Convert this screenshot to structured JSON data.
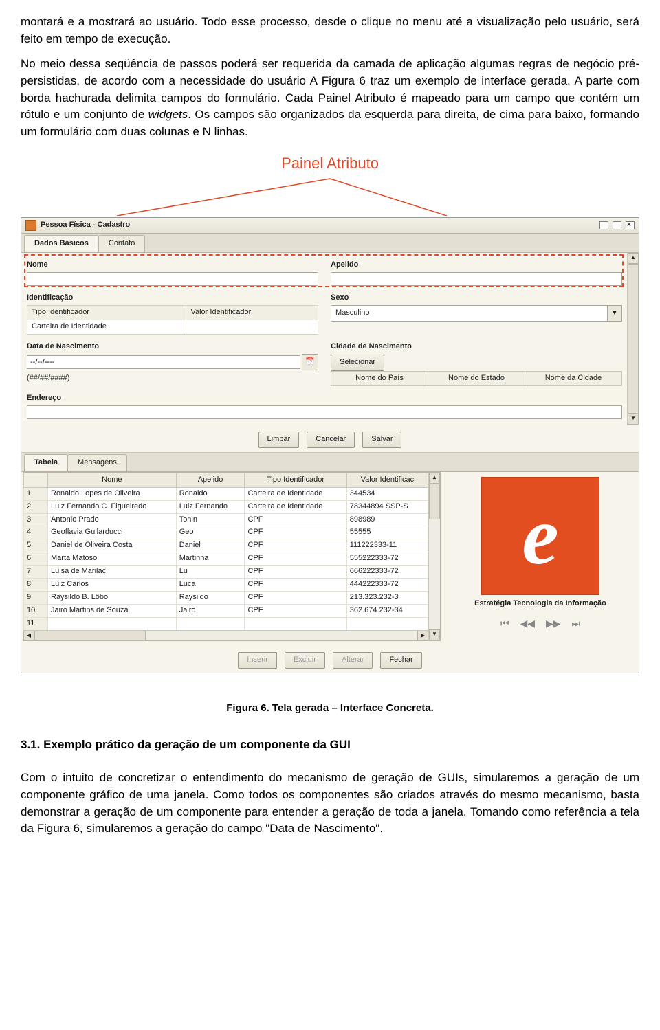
{
  "para1": "montará e a mostrará ao usuário. Todo esse processo, desde o clique no menu até a visualização pelo usuário, será feito em tempo de execução.",
  "para2_a": "No meio dessa seqüência de passos poderá ser requerida da camada de aplicação algumas regras de negócio pré-persistidas, de acordo com a necessidade do usuário A Figura 6 traz um exemplo de interface gerada. A parte com borda hachurada delimita campos do formulário. Cada Painel Atributo é mapeado para um campo que contém um rótulo e um conjunto de ",
  "para2_i": "widgets",
  "para2_b": ". Os campos são organizados da esquerda para direita, de cima para baixo, formando um formulário com duas colunas e N linhas.",
  "annotation": "Painel Atributo",
  "window_title": "Pessoa Física - Cadastro",
  "tabs_top": {
    "a": "Dados Básicos",
    "b": "Contato"
  },
  "labels": {
    "nome": "Nome",
    "apelido": "Apelido",
    "identificacao": "Identificação",
    "sexo": "Sexo",
    "tipo_ident": "Tipo Identificador",
    "valor_ident": "Valor Identificador",
    "carteira": "Carteira de Identidade",
    "data_nasc": "Data de Nascimento",
    "cidade_nasc": "Cidade de Nascimento",
    "endereco": "Endereço",
    "selecionar": "Selecionar",
    "nome_pais": "Nome do País",
    "nome_estado": "Nome do Estado",
    "nome_cidade": "Nome da Cidade"
  },
  "sexo_value": "Masculino",
  "date_placeholder": "--/--/----",
  "date_mask": "(##/##/####)",
  "buttons_upper": {
    "limpar": "Limpar",
    "cancelar": "Cancelar",
    "salvar": "Salvar"
  },
  "tabs_lower": {
    "a": "Tabela",
    "b": "Mensagens"
  },
  "grid_headers": [
    "",
    "Nome",
    "Apelido",
    "Tipo Identificador",
    "Valor Identificac"
  ],
  "grid_rows": [
    [
      "1",
      "Ronaldo Lopes de Oliveira",
      "Ronaldo",
      "Carteira de Identidade",
      "344534"
    ],
    [
      "2",
      "Luiz Fernando C. Figueiredo",
      "Luiz Fernando",
      "Carteira de Identidade",
      "78344894 SSP-S"
    ],
    [
      "3",
      "Antonio Prado",
      "Tonin",
      "CPF",
      "898989"
    ],
    [
      "4",
      "Geoflavia Guilarducci",
      "Geo",
      "CPF",
      "55555"
    ],
    [
      "5",
      "Daniel de Oliveira Costa",
      "Daniel",
      "CPF",
      "111222333-11"
    ],
    [
      "6",
      "Marta Matoso",
      "Martinha",
      "CPF",
      "555222333-72"
    ],
    [
      "7",
      "Luisa de Marilac",
      "Lu",
      "CPF",
      "666222333-72"
    ],
    [
      "8",
      "Luiz Carlos",
      "Luca",
      "CPF",
      "444222333-72"
    ],
    [
      "9",
      "Raysildo B. Lôbo",
      "Raysildo",
      "CPF",
      "213.323.232-3"
    ],
    [
      "10",
      "Jairo Martins de Souza",
      "Jairo",
      "CPF",
      "362.674.232-34"
    ],
    [
      "11",
      "",
      "",
      "",
      ""
    ]
  ],
  "logo_caption": "Estratégia Tecnologia da Informação",
  "buttons_lower": {
    "inserir": "Inserir",
    "excluir": "Excluir",
    "alterar": "Alterar",
    "fechar": "Fechar"
  },
  "pager": {
    "first": "⏮",
    "prev": "◀◀",
    "next": "▶▶",
    "last": "⏭"
  },
  "caption": "Figura 6. Tela gerada – Interface Concreta.",
  "section_head": "3.1. Exemplo prático da geração de um componente da GUI",
  "para3": "Com o intuito de concretizar o entendimento do mecanismo de geração de GUIs, simularemos a geração de um componente gráfico de uma janela. Como todos os componentes são criados através do mesmo mecanismo, basta demonstrar a geração de um componente para entender a geração de toda a janela. Tomando como referência a tela da Figura 6, simularemos a geração do campo \"Data de Nascimento\"."
}
